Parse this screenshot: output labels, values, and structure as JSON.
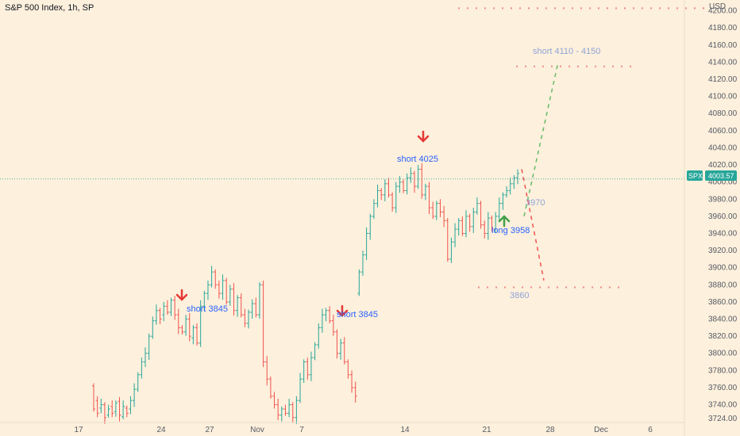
{
  "chart_data": {
    "type": "candlestick",
    "title": "S&P 500 Index, 1h, SP",
    "currency": "USD",
    "symbol": "SPX",
    "last_price": "4003.57",
    "colors": {
      "up": "#26a69a",
      "down": "#ef5350",
      "background": "#fdf0dc",
      "price_line": "#26a69a",
      "price_label_bg": "#26a69a"
    },
    "y_ticks": [
      "3740.00",
      "3760.00",
      "3780.00",
      "3800.00",
      "3820.00",
      "3840.00",
      "3860.00",
      "3880.00",
      "3900.00",
      "3920.00",
      "3940.00",
      "3960.00",
      "3980.00",
      "4000.00",
      "4020.00",
      "4040.00",
      "4060.00",
      "4080.00",
      "4100.00",
      "4120.00",
      "4140.00",
      "4160.00",
      "4180.00",
      "4200.00"
    ],
    "y_edge_label": "3724.00",
    "x_ticks": [
      "17",
      "24",
      "27",
      "Nov",
      "7",
      "14",
      "21",
      "28",
      "Dec",
      "6"
    ],
    "ylim": [
      3722,
      4207
    ],
    "path_points": [
      [
        3762,
        3735
      ],
      [
        3745,
        3730
      ],
      [
        3736,
        3740
      ],
      [
        3740,
        3725
      ],
      [
        3728,
        3735
      ],
      [
        3738,
        3730
      ],
      [
        3732,
        3742
      ],
      [
        3744,
        3728
      ],
      [
        3726,
        3738
      ],
      [
        3736,
        3730
      ],
      [
        3735,
        3745
      ],
      [
        3745,
        3758
      ],
      [
        3758,
        3775
      ],
      [
        3775,
        3790
      ],
      [
        3790,
        3800
      ],
      [
        3800,
        3820
      ],
      [
        3820,
        3838
      ],
      [
        3838,
        3850
      ],
      [
        3850,
        3840
      ],
      [
        3845,
        3855
      ],
      [
        3855,
        3848
      ],
      [
        3848,
        3862
      ],
      [
        3862,
        3845
      ],
      [
        3845,
        3830
      ],
      [
        3830,
        3825
      ],
      [
        3825,
        3840
      ],
      [
        3840,
        3820
      ],
      [
        3818,
        3830
      ],
      [
        3830,
        3812
      ],
      [
        3812,
        3855
      ],
      [
        3855,
        3870
      ],
      [
        3870,
        3880
      ],
      [
        3880,
        3895
      ],
      [
        3895,
        3880
      ],
      [
        3880,
        3870
      ],
      [
        3870,
        3885
      ],
      [
        3885,
        3860
      ],
      [
        3860,
        3875
      ],
      [
        3875,
        3850
      ],
      [
        3850,
        3865
      ],
      [
        3865,
        3845
      ],
      [
        3845,
        3835
      ],
      [
        3835,
        3848
      ],
      [
        3848,
        3858
      ],
      [
        3858,
        3845
      ],
      [
        3845,
        3880
      ],
      [
        3880,
        3790
      ],
      [
        3790,
        3770
      ],
      [
        3770,
        3750
      ],
      [
        3750,
        3740
      ],
      [
        3740,
        3728
      ],
      [
        3728,
        3735
      ],
      [
        3735,
        3730
      ],
      [
        3730,
        3740
      ],
      [
        3740,
        3725
      ],
      [
        3725,
        3745
      ],
      [
        3745,
        3770
      ],
      [
        3770,
        3790
      ],
      [
        3790,
        3775
      ],
      [
        3775,
        3795
      ],
      [
        3795,
        3810
      ],
      [
        3810,
        3830
      ],
      [
        3830,
        3845
      ],
      [
        3845,
        3850
      ],
      [
        3850,
        3838
      ],
      [
        3838,
        3825
      ],
      [
        3825,
        3800
      ],
      [
        3800,
        3812
      ],
      [
        3812,
        3790
      ],
      [
        3790,
        3775
      ],
      [
        3775,
        3760
      ],
      [
        3760,
        3750
      ],
      [
        3870,
        3895
      ],
      [
        3895,
        3915
      ],
      [
        3915,
        3940
      ],
      [
        3940,
        3960
      ],
      [
        3960,
        3975
      ],
      [
        3975,
        3990
      ],
      [
        3990,
        3985
      ],
      [
        3985,
        3998
      ],
      [
        3998,
        3985
      ],
      [
        3985,
        3970
      ],
      [
        3970,
        3995
      ],
      [
        3995,
        4000
      ],
      [
        4000,
        3990
      ],
      [
        3990,
        4005
      ],
      [
        4005,
        4010
      ],
      [
        4010,
        3995
      ],
      [
        3995,
        4015
      ],
      [
        4015,
        3985
      ],
      [
        3985,
        3995
      ],
      [
        3995,
        3970
      ],
      [
        3970,
        3960
      ],
      [
        3960,
        3975
      ],
      [
        3975,
        3965
      ],
      [
        3965,
        3955
      ],
      [
        3955,
        3910
      ],
      [
        3910,
        3930
      ],
      [
        3930,
        3945
      ],
      [
        3945,
        3955
      ],
      [
        3955,
        3940
      ],
      [
        3940,
        3960
      ],
      [
        3960,
        3948
      ],
      [
        3948,
        3965
      ],
      [
        3965,
        3975
      ],
      [
        3975,
        3950
      ],
      [
        3950,
        3940
      ],
      [
        3940,
        3958
      ],
      [
        3958,
        3945
      ],
      [
        3945,
        3960
      ],
      [
        3960,
        3975
      ],
      [
        3975,
        3985
      ],
      [
        3985,
        3990
      ],
      [
        3990,
        3998
      ],
      [
        3998,
        4005
      ],
      [
        4005,
        4010
      ]
    ],
    "horizontal_levels": [
      {
        "value": 4203,
        "from": "2022-11-28",
        "to": "2022-12-09"
      },
      {
        "value": 4135,
        "from": "2022-11-22",
        "to": "2022-11-30"
      },
      {
        "value": 3877,
        "from": "2022-11-20",
        "to": "2022-11-30"
      }
    ],
    "projection_lines": [
      {
        "name": "up",
        "color": "#66bb6a",
        "from": 3960,
        "to": 4140
      },
      {
        "name": "down",
        "color": "#ef5350",
        "from": 4015,
        "to": 3885
      }
    ],
    "annotations": [
      {
        "text": "short 3845",
        "price": 3845,
        "arrow": "down"
      },
      {
        "text": "short 3845",
        "price": 3845,
        "arrow": "down"
      },
      {
        "text": "short 4025",
        "price": 4025,
        "arrow": "down"
      },
      {
        "text": "long 3958",
        "price": 3958,
        "arrow": "up"
      },
      {
        "text": "3970",
        "price": 3970,
        "arrow": "none"
      },
      {
        "text": "short 4110 - 4150",
        "price": 4150,
        "arrow": "none"
      },
      {
        "text": "3860",
        "price": 3860,
        "arrow": "none"
      }
    ]
  }
}
